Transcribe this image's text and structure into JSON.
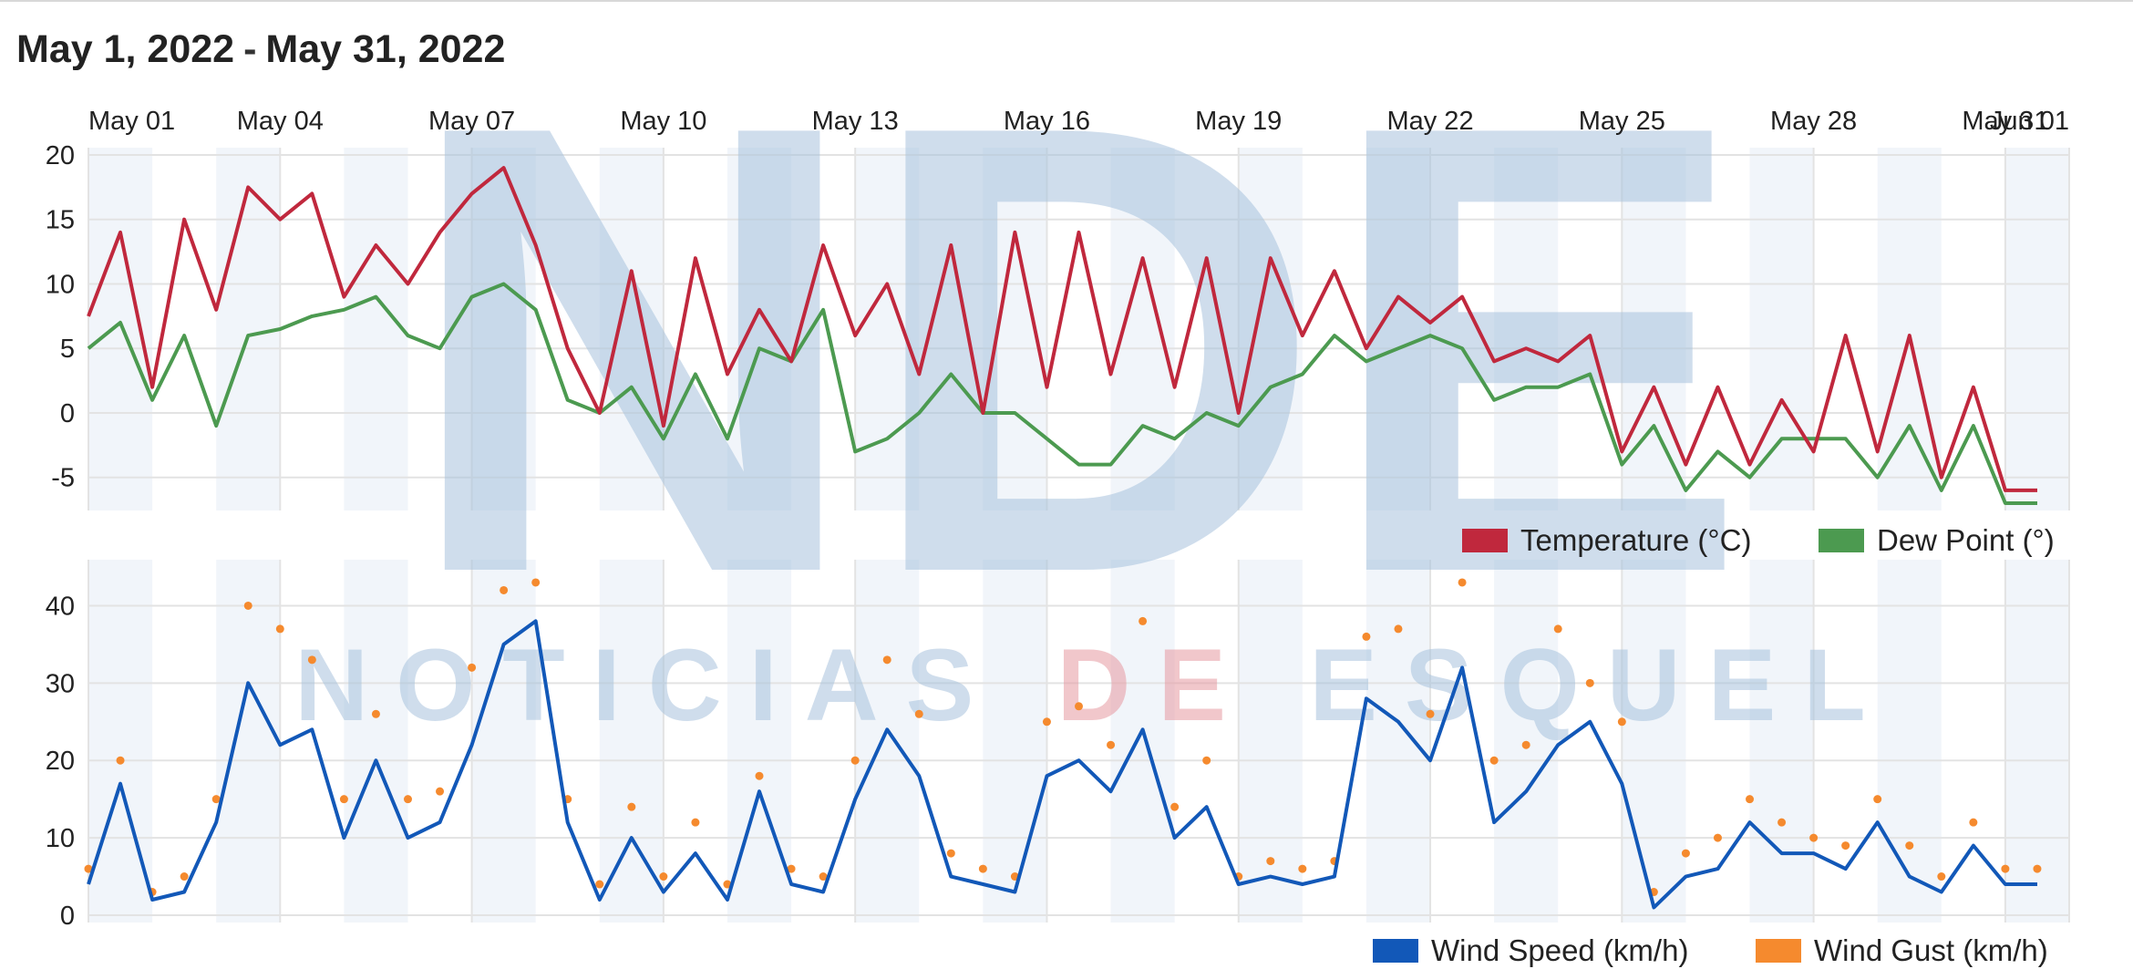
{
  "header": {
    "start": "May 1, 2022",
    "separator": "-",
    "end": "May 31, 2022"
  },
  "watermark": {
    "logo_text": "NDE",
    "name_parts": [
      "NOTICIAS ",
      "DE",
      " ESQUEL"
    ]
  },
  "colors": {
    "temperature": "#c0283d",
    "dew_point": "#4c9a50",
    "wind_speed": "#1258b8",
    "wind_gust": "#f58a2e",
    "plot_band": "#f1f5fa",
    "grid": "#e3e3e3",
    "watermark": "#a8c3dd",
    "watermark_accent": "#e79aa2"
  },
  "chart_data": [
    {
      "type": "line",
      "title": "",
      "x_ticks": [
        "May 01",
        "May 04",
        "May 07",
        "May 10",
        "May 13",
        "May 16",
        "May 19",
        "May 22",
        "May 25",
        "May 28",
        "May 31",
        "Jun 01"
      ],
      "x_range": [
        "2022-05-01",
        "2022-06-01"
      ],
      "ylim": [
        -7,
        20
      ],
      "y_ticks": [
        20,
        15,
        10,
        5,
        0,
        -5
      ],
      "grid": true,
      "legend": "bottom-right",
      "series": [
        {
          "name": "Temperature (°C)",
          "x": [
            "2022-05-01",
            "2022-05-01T12",
            "2022-05-02",
            "2022-05-02T12",
            "2022-05-03",
            "2022-05-03T12",
            "2022-05-04",
            "2022-05-04T12",
            "2022-05-05",
            "2022-05-05T12",
            "2022-05-06",
            "2022-05-06T12",
            "2022-05-07",
            "2022-05-07T12",
            "2022-05-08",
            "2022-05-08T12",
            "2022-05-09",
            "2022-05-09T12",
            "2022-05-10",
            "2022-05-10T12",
            "2022-05-11",
            "2022-05-11T12",
            "2022-05-12",
            "2022-05-12T12",
            "2022-05-13",
            "2022-05-13T12",
            "2022-05-14",
            "2022-05-14T12",
            "2022-05-15",
            "2022-05-15T12",
            "2022-05-16",
            "2022-05-16T12",
            "2022-05-17",
            "2022-05-17T12",
            "2022-05-18",
            "2022-05-18T12",
            "2022-05-19",
            "2022-05-19T12",
            "2022-05-20",
            "2022-05-20T12",
            "2022-05-21",
            "2022-05-21T12",
            "2022-05-22",
            "2022-05-22T12",
            "2022-05-23",
            "2022-05-23T12",
            "2022-05-24",
            "2022-05-24T12",
            "2022-05-25",
            "2022-05-25T12",
            "2022-05-26",
            "2022-05-26T12",
            "2022-05-27",
            "2022-05-27T12",
            "2022-05-28",
            "2022-05-28T12",
            "2022-05-29",
            "2022-05-29T12",
            "2022-05-30",
            "2022-05-30T12",
            "2022-05-31",
            "2022-05-31T12"
          ],
          "values": [
            7.5,
            14,
            2,
            15,
            8,
            17.5,
            15,
            17,
            9,
            13,
            10,
            14,
            17,
            19,
            13,
            5,
            0,
            11,
            -1,
            12,
            3,
            8,
            4,
            13,
            6,
            10,
            3,
            13,
            0,
            14,
            2,
            14,
            3,
            12,
            2,
            12,
            0,
            12,
            6,
            11,
            5,
            9,
            7,
            9,
            4,
            5,
            4,
            6,
            -3,
            2,
            -4,
            2,
            -4,
            1,
            -3,
            6,
            -3,
            6,
            -5,
            2,
            -6,
            -6
          ]
        },
        {
          "name": "Dew Point (°)",
          "x": [
            "2022-05-01",
            "2022-05-01T12",
            "2022-05-02",
            "2022-05-02T12",
            "2022-05-03",
            "2022-05-03T12",
            "2022-05-04",
            "2022-05-04T12",
            "2022-05-05",
            "2022-05-05T12",
            "2022-05-06",
            "2022-05-06T12",
            "2022-05-07",
            "2022-05-07T12",
            "2022-05-08",
            "2022-05-08T12",
            "2022-05-09",
            "2022-05-09T12",
            "2022-05-10",
            "2022-05-10T12",
            "2022-05-11",
            "2022-05-11T12",
            "2022-05-12",
            "2022-05-12T12",
            "2022-05-13",
            "2022-05-13T12",
            "2022-05-14",
            "2022-05-14T12",
            "2022-05-15",
            "2022-05-15T12",
            "2022-05-16",
            "2022-05-16T12",
            "2022-05-17",
            "2022-05-17T12",
            "2022-05-18",
            "2022-05-18T12",
            "2022-05-19",
            "2022-05-19T12",
            "2022-05-20",
            "2022-05-20T12",
            "2022-05-21",
            "2022-05-21T12",
            "2022-05-22",
            "2022-05-22T12",
            "2022-05-23",
            "2022-05-23T12",
            "2022-05-24",
            "2022-05-24T12",
            "2022-05-25",
            "2022-05-25T12",
            "2022-05-26",
            "2022-05-26T12",
            "2022-05-27",
            "2022-05-27T12",
            "2022-05-28",
            "2022-05-28T12",
            "2022-05-29",
            "2022-05-29T12",
            "2022-05-30",
            "2022-05-30T12",
            "2022-05-31",
            "2022-05-31T12"
          ],
          "values": [
            5,
            7,
            1,
            6,
            -1,
            6,
            6.5,
            7.5,
            8,
            9,
            6,
            5,
            9,
            10,
            8,
            1,
            0,
            2,
            -2,
            3,
            -2,
            5,
            4,
            8,
            -3,
            -2,
            0,
            3,
            0,
            0,
            -2,
            -4,
            -4,
            -1,
            -2,
            0,
            -1,
            2,
            3,
            6,
            4,
            5,
            6,
            5,
            1,
            2,
            2,
            3,
            -4,
            -1,
            -6,
            -3,
            -5,
            -2,
            -2,
            -2,
            -5,
            -1,
            -6,
            -1,
            -7,
            -7
          ]
        },
        {
          "name": "Temperature (°C)",
          "x": [],
          "values": []
        }
      ]
    },
    {
      "type": "line",
      "title": "",
      "ylim": [
        0,
        45
      ],
      "y_ticks": [
        40,
        30,
        20,
        10,
        0
      ],
      "grid": true,
      "legend": "bottom-right",
      "series": [
        {
          "name": "Wind Speed (km/h)",
          "x": [
            "2022-05-01",
            "2022-05-01T12",
            "2022-05-02",
            "2022-05-02T12",
            "2022-05-03",
            "2022-05-03T12",
            "2022-05-04",
            "2022-05-04T12",
            "2022-05-05",
            "2022-05-05T12",
            "2022-05-06",
            "2022-05-06T12",
            "2022-05-07",
            "2022-05-07T12",
            "2022-05-08",
            "2022-05-08T12",
            "2022-05-09",
            "2022-05-09T12",
            "2022-05-10",
            "2022-05-10T12",
            "2022-05-11",
            "2022-05-11T12",
            "2022-05-12",
            "2022-05-12T12",
            "2022-05-13",
            "2022-05-13T12",
            "2022-05-14",
            "2022-05-14T12",
            "2022-05-15",
            "2022-05-15T12",
            "2022-05-16",
            "2022-05-16T12",
            "2022-05-17",
            "2022-05-17T12",
            "2022-05-18",
            "2022-05-18T12",
            "2022-05-19",
            "2022-05-19T12",
            "2022-05-20",
            "2022-05-20T12",
            "2022-05-21",
            "2022-05-21T12",
            "2022-05-22",
            "2022-05-22T12",
            "2022-05-23",
            "2022-05-23T12",
            "2022-05-24",
            "2022-05-24T12",
            "2022-05-25",
            "2022-05-25T12",
            "2022-05-26",
            "2022-05-26T12",
            "2022-05-27",
            "2022-05-27T12",
            "2022-05-28",
            "2022-05-28T12",
            "2022-05-29",
            "2022-05-29T12",
            "2022-05-30",
            "2022-05-30T12",
            "2022-05-31",
            "2022-05-31T12"
          ],
          "values": [
            4,
            17,
            2,
            3,
            12,
            30,
            22,
            24,
            10,
            20,
            10,
            12,
            22,
            35,
            38,
            12,
            2,
            10,
            3,
            8,
            2,
            16,
            4,
            3,
            15,
            24,
            18,
            5,
            4,
            3,
            18,
            20,
            16,
            24,
            10,
            14,
            4,
            5,
            4,
            5,
            28,
            25,
            20,
            32,
            12,
            16,
            22,
            25,
            17,
            1,
            5,
            6,
            12,
            8,
            8,
            6,
            12,
            5,
            3,
            9,
            4,
            4
          ]
        },
        {
          "name": "Wind Gust (km/h)",
          "x": [
            "2022-05-01",
            "2022-05-01T12",
            "2022-05-02",
            "2022-05-02T12",
            "2022-05-03",
            "2022-05-03T12",
            "2022-05-04",
            "2022-05-04T12",
            "2022-05-05",
            "2022-05-05T12",
            "2022-05-06",
            "2022-05-06T12",
            "2022-05-07",
            "2022-05-07T12",
            "2022-05-08",
            "2022-05-08T12",
            "2022-05-09",
            "2022-05-09T12",
            "2022-05-10",
            "2022-05-10T12",
            "2022-05-11",
            "2022-05-11T12",
            "2022-05-12",
            "2022-05-12T12",
            "2022-05-13",
            "2022-05-13T12",
            "2022-05-14",
            "2022-05-14T12",
            "2022-05-15",
            "2022-05-15T12",
            "2022-05-16",
            "2022-05-16T12",
            "2022-05-17",
            "2022-05-17T12",
            "2022-05-18",
            "2022-05-18T12",
            "2022-05-19",
            "2022-05-19T12",
            "2022-05-20",
            "2022-05-20T12",
            "2022-05-21",
            "2022-05-21T12",
            "2022-05-22",
            "2022-05-22T12",
            "2022-05-23",
            "2022-05-23T12",
            "2022-05-24",
            "2022-05-24T12",
            "2022-05-25",
            "2022-05-25T12",
            "2022-05-26",
            "2022-05-26T12",
            "2022-05-27",
            "2022-05-27T12",
            "2022-05-28",
            "2022-05-28T12",
            "2022-05-29",
            "2022-05-29T12",
            "2022-05-30",
            "2022-05-30T12",
            "2022-05-31",
            "2022-05-31T12"
          ],
          "values": [
            6,
            20,
            3,
            5,
            15,
            40,
            37,
            33,
            15,
            26,
            15,
            16,
            32,
            42,
            43,
            15,
            4,
            14,
            5,
            12,
            4,
            18,
            6,
            5,
            20,
            33,
            26,
            8,
            6,
            5,
            25,
            27,
            22,
            38,
            14,
            20,
            5,
            7,
            6,
            7,
            36,
            37,
            26,
            43,
            20,
            22,
            37,
            30,
            25,
            3,
            8,
            10,
            15,
            12,
            10,
            9,
            15,
            9,
            5,
            12,
            6,
            6
          ]
        }
      ]
    }
  ]
}
